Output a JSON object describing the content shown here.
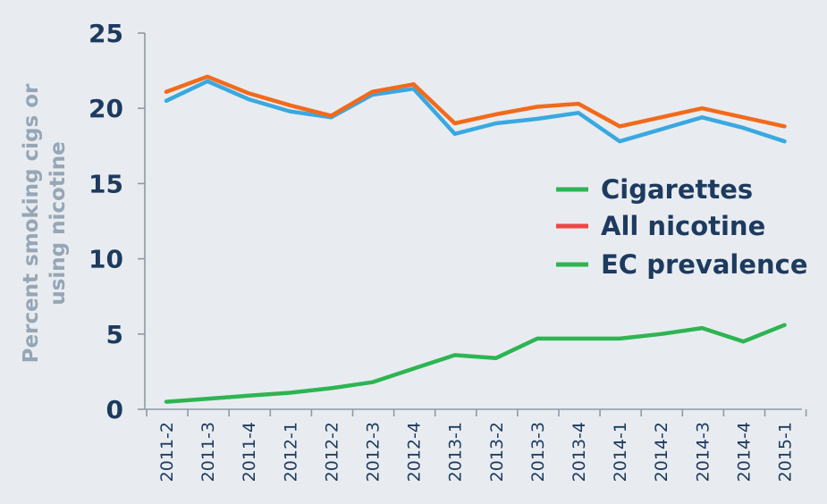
{
  "chart_data": {
    "type": "line",
    "title": "",
    "xlabel": "",
    "ylabel_lines": [
      "Percent smoking cigs or",
      "using nicotine"
    ],
    "ylim": [
      0,
      25
    ],
    "yticks": [
      "0",
      "5",
      "10",
      "15",
      "20",
      "25"
    ],
    "categories": [
      "2011-2",
      "2011-3",
      "2011-4",
      "2012-1",
      "2012-2",
      "2012-3",
      "2012-4",
      "2013-1",
      "2013-2",
      "2013-3",
      "2013-4",
      "2014-1",
      "2014-2",
      "2014-3",
      "2014-4",
      "2015-1"
    ],
    "series": [
      {
        "name": "Cigarettes",
        "legend_color": "#2db553",
        "line_color": "#3aa8e0",
        "values": [
          20.5,
          21.8,
          20.6,
          19.8,
          19.4,
          20.9,
          21.3,
          18.3,
          19.0,
          19.3,
          19.7,
          17.8,
          18.6,
          19.4,
          18.7,
          17.8
        ]
      },
      {
        "name": "All nicotine",
        "legend_color": "#ef4545",
        "line_color": "#f26a1b",
        "values": [
          21.1,
          22.1,
          21.0,
          20.2,
          19.5,
          21.1,
          21.6,
          19.0,
          19.6,
          20.1,
          20.3,
          18.8,
          19.4,
          20.0,
          19.4,
          18.8
        ]
      },
      {
        "name": "EC prevalence",
        "legend_color": "#2db553",
        "line_color": "#2db553",
        "values": [
          0.5,
          0.7,
          0.9,
          1.1,
          1.4,
          1.8,
          2.7,
          3.6,
          3.4,
          4.7,
          4.7,
          4.7,
          5.0,
          5.4,
          4.5,
          5.6
        ]
      }
    ],
    "legend_position": "right",
    "grid": false
  }
}
